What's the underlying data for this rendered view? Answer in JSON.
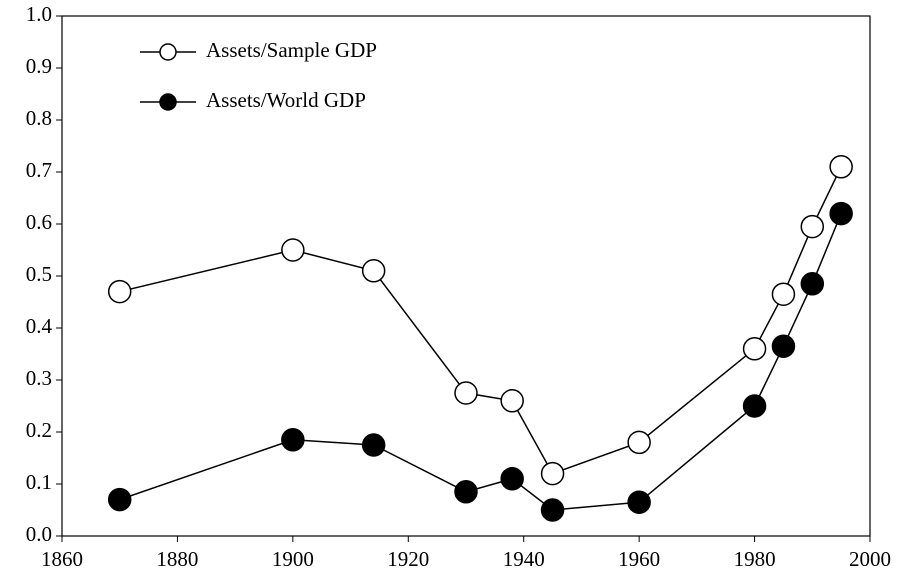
{
  "chart_data": {
    "type": "line",
    "x": [
      1870,
      1900,
      1914,
      1930,
      1938,
      1945,
      1960,
      1980,
      1985,
      1990,
      1995
    ],
    "series": [
      {
        "name": "Assets/Sample GDP",
        "color": "#000000",
        "marker": "open",
        "values": [
          0.47,
          0.55,
          0.51,
          0.275,
          0.26,
          0.12,
          0.18,
          0.36,
          0.465,
          0.595,
          0.71
        ]
      },
      {
        "name": "Assets/World GDP",
        "color": "#000000",
        "marker": "filled",
        "values": [
          0.07,
          0.185,
          0.175,
          0.085,
          0.11,
          0.05,
          0.065,
          0.25,
          0.365,
          0.485,
          0.62
        ]
      }
    ],
    "xlim": [
      1860,
      2000
    ],
    "xticks": [
      1860,
      1880,
      1900,
      1920,
      1940,
      1960,
      1980,
      2000
    ],
    "ylim": [
      0,
      1
    ],
    "yticks": [
      {
        "value": 0,
        "label": "0.0"
      },
      0.1,
      0.2,
      0.3,
      0.4,
      0.5,
      0.6,
      0.7,
      0.8,
      0.9,
      {
        "value": 1,
        "label": "1.0"
      }
    ],
    "grid": false,
    "legend": "top-left"
  }
}
